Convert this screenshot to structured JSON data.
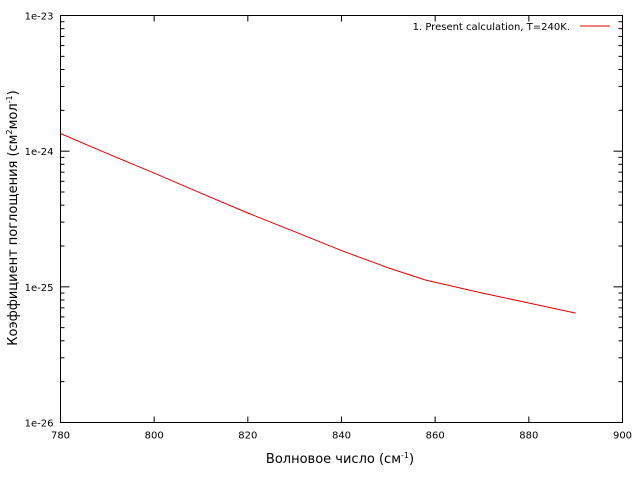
{
  "chart_data": {
    "type": "line",
    "xlabel": "Волновое число (см",
    "xlabel_sup": "-1",
    "xlabel_end": ")",
    "ylabel": "Коэффициент поглощения (см",
    "ylabel_sup1": "2",
    "ylabel_mid": "мол",
    "ylabel_sup2": "-1",
    "ylabel_end": ")",
    "xlim": [
      780,
      900
    ],
    "ylim": [
      1e-26,
      1e-23
    ],
    "yscale": "log",
    "xticks": [
      780,
      800,
      820,
      840,
      860,
      880,
      900
    ],
    "xtick_labels": [
      "780",
      "800",
      "820",
      "840",
      "860",
      "880",
      "900"
    ],
    "yticks": [
      1e-26,
      1e-25,
      1e-24,
      1e-23
    ],
    "ytick_labels": [
      "1e-26",
      "1e-25",
      "1e-24",
      "1e-23"
    ],
    "grid": false,
    "legend_position": "top-right",
    "series": [
      {
        "name": "1. Present calculation, T=240K.",
        "color": "#e00000",
        "x": [
          780,
          790,
          800,
          810,
          820,
          830,
          840,
          850,
          858,
          870,
          880,
          890
        ],
        "y": [
          1.35e-24,
          9.6e-25,
          6.9e-25,
          4.9e-25,
          3.5e-25,
          2.55e-25,
          1.85e-25,
          1.38e-25,
          1.12e-25,
          9e-26,
          7.6e-26,
          6.4e-26
        ]
      }
    ]
  }
}
